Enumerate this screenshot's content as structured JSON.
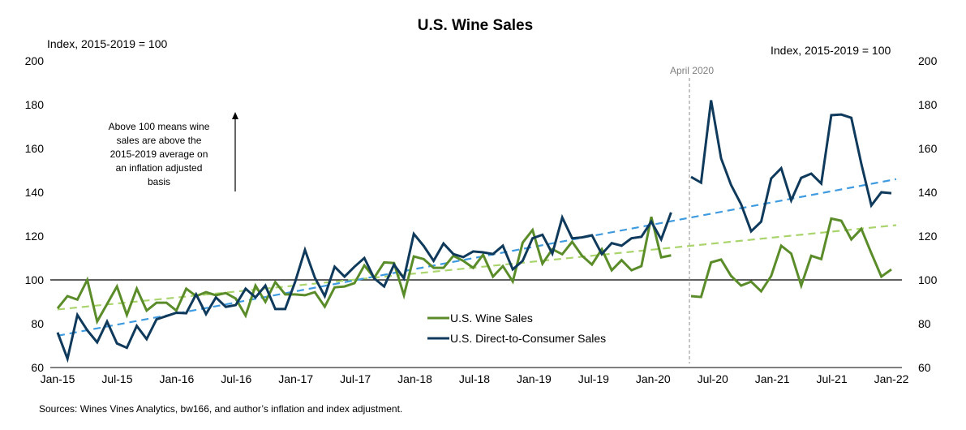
{
  "chart_data": {
    "type": "line",
    "title": "U.S. Wine Sales",
    "ylabel_left": "Index,  2015-2019 = 100",
    "ylabel_right": "Index,  2015-2019 = 100",
    "ylim": [
      60,
      200
    ],
    "yticks": [
      "60",
      "80",
      "100",
      "120",
      "140",
      "160",
      "180",
      "200"
    ],
    "yticks_right": [
      "60",
      "80",
      "100",
      "120",
      "140",
      "160",
      "180",
      "200"
    ],
    "xtick_labels": [
      "Jan-15",
      "Jul-15",
      "Jan-16",
      "Jul-16",
      "Jan-17",
      "Jul-17",
      "Jan-18",
      "Jul-18",
      "Jan-19",
      "Jul-19",
      "Jan-20",
      "Jul-20",
      "Jan-21",
      "Jul-21",
      "Jan-22"
    ],
    "reference_line": 100,
    "event_marker": "April 2020",
    "annotation": [
      "Above  100 means wine",
      "sales are above the",
      "2015-2019 average on",
      "an inflation  adjusted",
      "basis"
    ],
    "legend": [
      "U.S. Wine Sales",
      "U.S. Direct-to-Consumer Sales"
    ],
    "legend_position": "bottom-center",
    "source": "Sources: Wines Vines Analytics, bw166, and author’s inflation and index adjustment.",
    "colors": {
      "wine": "#5b8c2a",
      "dtc": "#0f3a5c",
      "wine_trend": "#a9d46b",
      "dtc_trend": "#3e9be0",
      "marker": "#8c8c8c"
    },
    "series": [
      {
        "name": "U.S. Wine Sales",
        "pre_april_2020": [
          87,
          92.6,
          91,
          100,
          81,
          89,
          97,
          84,
          96,
          86,
          89.6,
          89.6,
          86,
          96,
          92.6,
          94.4,
          93,
          94,
          91.5,
          83.7,
          97.4,
          90,
          99,
          93.4,
          93.4,
          93,
          94.4,
          87.8,
          96.6,
          97,
          98.5,
          106.6,
          101,
          108,
          107.7,
          93,
          110.7,
          109.5,
          105.5,
          105.5,
          111,
          108.7,
          105.5,
          111.5,
          101.5,
          106.3,
          99.3,
          117,
          122.8,
          107.4,
          114,
          111.7,
          117.4,
          111,
          107,
          114,
          104.4,
          109,
          104.4,
          106.3,
          128.8,
          110.3,
          111.2
        ],
        "post_april_2020": [
          92.6,
          92.2,
          108,
          109.3,
          101.8,
          97.4,
          99.2,
          94.8,
          101.8,
          115.6,
          112,
          97.4,
          111,
          109.5,
          128,
          127,
          118.5,
          123.3,
          112.2,
          101.5,
          104.8
        ],
        "trend": {
          "start": 86.5,
          "april_2020": 116,
          "end": 125
        }
      },
      {
        "name": "U.S. Direct-to-Consumer Sales",
        "pre_april_2020": [
          76,
          64,
          84,
          77,
          71.5,
          81,
          71,
          69,
          79,
          73,
          82,
          83.5,
          85,
          84.8,
          93.4,
          84.4,
          92,
          87.7,
          88.5,
          96,
          92,
          97.4,
          86.7,
          86.7,
          99,
          113.7,
          101,
          92.6,
          106,
          101.5,
          106,
          110,
          100.7,
          97,
          107,
          100.7,
          121,
          115.5,
          108.7,
          116.6,
          111.8,
          110.4,
          113,
          112.6,
          111.8,
          115.6,
          104.8,
          108.7,
          119,
          120.6,
          112,
          128.5,
          119,
          119.4,
          120.4,
          111.8,
          116.8,
          115.6,
          119,
          119.7,
          126.6,
          118.5,
          130.8
        ],
        "post_april_2020": [
          147,
          144.4,
          182,
          155.5,
          143.3,
          134.5,
          122.2,
          126.6,
          146.3,
          151,
          136.3,
          146.6,
          148.5,
          144,
          175.2,
          175.5,
          174,
          153,
          134,
          140,
          139.6
        ],
        "trend": {
          "start": 74.5,
          "april_2020": 130,
          "end": 146
        }
      }
    ]
  }
}
